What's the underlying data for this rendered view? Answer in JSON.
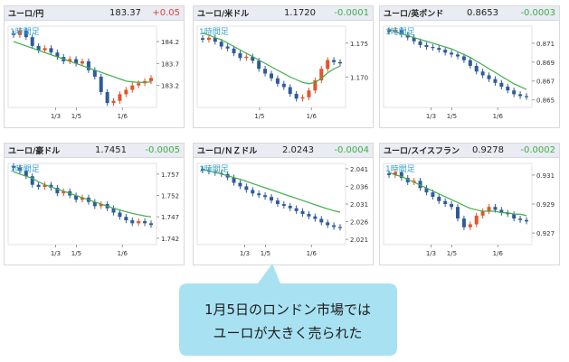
{
  "colors": {
    "up": "#e4532a",
    "down": "#2f5b9a",
    "ma": "#3fae49",
    "positive_change": "#e04040",
    "negative_change": "#3fae49",
    "callout_fill": "#a8e2f2",
    "callout_text": "#1d1d1d"
  },
  "timeframe_label": "1時間足",
  "callout": {
    "line1": "1月5日のロンドン市場では",
    "line2": "ユーロが大きく売られた"
  },
  "chart_data": [
    {
      "type": "candlestick",
      "pair": "ユーロ/円",
      "price": "183.37",
      "change": "+0.05",
      "direction": "up",
      "x_ticks": [
        "1/3",
        "1/5",
        "1/6"
      ],
      "y_ticks": [
        "184.2",
        "183.7",
        "183.2"
      ],
      "ylim": [
        182.7,
        184.55
      ],
      "path": [
        184.35,
        184.45,
        184.3,
        184.1,
        184.0,
        184.05,
        183.95,
        183.85,
        183.75,
        183.8,
        183.7,
        183.75,
        183.55,
        183.4,
        183.05,
        182.8,
        182.85,
        183.0,
        183.1,
        183.2,
        183.25,
        183.3,
        183.37
      ],
      "ma": [
        184.2,
        184.15,
        184.1,
        184.05,
        184.0,
        183.95,
        183.9,
        183.85,
        183.8,
        183.75,
        183.7,
        183.65,
        183.6,
        183.55,
        183.5,
        183.45,
        183.4,
        183.35,
        183.3,
        183.28,
        183.27,
        183.27,
        183.28
      ]
    },
    {
      "type": "candlestick",
      "pair": "ユーロ/米ドル",
      "price": "1.1720",
      "change": "-0.0001",
      "direction": "down",
      "x_ticks": [
        "1/5",
        "1/6"
      ],
      "y_ticks": [
        "1.175",
        "1.170"
      ],
      "ylim": [
        1.1655,
        1.1775
      ],
      "path": [
        1.1755,
        1.1758,
        1.1752,
        1.1745,
        1.1742,
        1.1735,
        1.1728,
        1.173,
        1.1724,
        1.1712,
        1.1705,
        1.1698,
        1.169,
        1.1685,
        1.1675,
        1.1668,
        1.167,
        1.168,
        1.1695,
        1.1712,
        1.1725,
        1.1722,
        1.172
      ],
      "ma": [
        1.1765,
        1.1762,
        1.1758,
        1.1755,
        1.175,
        1.1745,
        1.174,
        1.1735,
        1.173,
        1.1725,
        1.172,
        1.1715,
        1.171,
        1.1705,
        1.17,
        1.1696,
        1.1692,
        1.169,
        1.1692,
        1.1698,
        1.1706,
        1.1712,
        1.1716
      ]
    },
    {
      "type": "candlestick",
      "pair": "ユーロ/英ポンド",
      "price": "0.8653",
      "change": "-0.0003",
      "direction": "down",
      "x_ticks": [
        "1/3",
        "1/5",
        "1/6"
      ],
      "y_ticks": [
        "0.871",
        "0.869",
        "0.867",
        "0.865"
      ],
      "ylim": [
        0.8642,
        0.8728
      ],
      "path": [
        0.8722,
        0.8724,
        0.8719,
        0.8716,
        0.8712,
        0.8708,
        0.8706,
        0.8705,
        0.8703,
        0.87,
        0.8698,
        0.8696,
        0.8692,
        0.8686,
        0.868,
        0.8676,
        0.8672,
        0.8668,
        0.8664,
        0.866,
        0.8656,
        0.8654,
        0.8653
      ],
      "ma": [
        0.8725,
        0.8722,
        0.872,
        0.8718,
        0.8716,
        0.8714,
        0.8712,
        0.871,
        0.8708,
        0.8706,
        0.8704,
        0.8701,
        0.8698,
        0.8695,
        0.8691,
        0.8687,
        0.8683,
        0.8679,
        0.8675,
        0.8671,
        0.8667,
        0.8664,
        0.8661
      ]
    },
    {
      "type": "candlestick",
      "pair": "ユーロ/豪ドル",
      "price": "1.7451",
      "change": "-0.0005",
      "direction": "down",
      "x_ticks": [
        "1/3",
        "1/5",
        "1/6"
      ],
      "y_ticks": [
        "1.757",
        "1.752",
        "1.747",
        "1.742"
      ],
      "ylim": [
        1.7405,
        1.7595
      ],
      "path": [
        1.7585,
        1.7578,
        1.7565,
        1.7545,
        1.754,
        1.7545,
        1.7538,
        1.7525,
        1.753,
        1.752,
        1.751,
        1.7515,
        1.7505,
        1.7495,
        1.75,
        1.749,
        1.748,
        1.747,
        1.7462,
        1.7455,
        1.746,
        1.7455,
        1.7451
      ],
      "ma": [
        1.7575,
        1.757,
        1.7565,
        1.756,
        1.7552,
        1.7545,
        1.754,
        1.7535,
        1.753,
        1.7525,
        1.752,
        1.7515,
        1.751,
        1.7505,
        1.75,
        1.7495,
        1.749,
        1.7486,
        1.7482,
        1.7478,
        1.7475,
        1.7472,
        1.747
      ]
    },
    {
      "type": "candlestick",
      "pair": "ユーロ/ＮＺドル",
      "price": "2.0243",
      "change": "-0.0004",
      "direction": "down",
      "x_ticks": [
        "1/3",
        "1/5",
        "1/6"
      ],
      "y_ticks": [
        "2.041",
        "2.036",
        "2.031",
        "2.026",
        "2.021"
      ],
      "ylim": [
        2.0195,
        2.0425
      ],
      "path": [
        2.0405,
        2.0402,
        2.0398,
        2.0395,
        2.0385,
        2.037,
        2.036,
        2.035,
        2.034,
        2.0335,
        2.033,
        2.032,
        2.031,
        2.0305,
        2.0298,
        2.029,
        2.0282,
        2.0275,
        2.0268,
        2.0258,
        2.025,
        2.0245,
        2.0243
      ],
      "ma": [
        2.0408,
        2.0404,
        2.04,
        2.0395,
        2.039,
        2.0385,
        2.038,
        2.0374,
        2.0368,
        2.0362,
        2.0356,
        2.035,
        2.0344,
        2.0338,
        2.0332,
        2.0326,
        2.032,
        2.0314,
        2.0308,
        2.0302,
        2.0296,
        2.0291,
        2.0287
      ]
    },
    {
      "type": "candlestick",
      "pair": "ユーロ/スイスフラン",
      "price": "0.9278",
      "change": "-0.0002",
      "direction": "down",
      "x_ticks": [
        "1/3",
        "1/5",
        "1/6"
      ],
      "y_ticks": [
        "0.931",
        "0.929",
        "0.927"
      ],
      "ylim": [
        0.9262,
        0.9318
      ],
      "path": [
        0.931,
        0.9312,
        0.9308,
        0.9305,
        0.9306,
        0.9301,
        0.9298,
        0.9295,
        0.9292,
        0.929,
        0.9288,
        0.928,
        0.9274,
        0.9276,
        0.9282,
        0.9285,
        0.9288,
        0.9286,
        0.9284,
        0.9283,
        0.928,
        0.9279,
        0.9278
      ],
      "ma": [
        0.9312,
        0.931,
        0.9309,
        0.9307,
        0.9305,
        0.9303,
        0.9301,
        0.9299,
        0.9297,
        0.9295,
        0.9293,
        0.9291,
        0.9289,
        0.9287,
        0.9286,
        0.9285,
        0.9285,
        0.9285,
        0.9284,
        0.9284,
        0.9283,
        0.9283,
        0.9282
      ]
    }
  ]
}
